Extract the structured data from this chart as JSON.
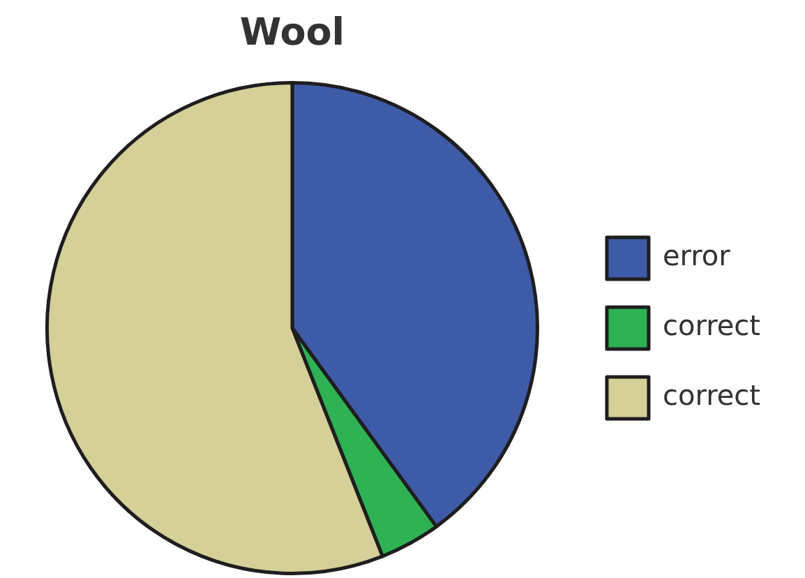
{
  "chart_data": {
    "type": "pie",
    "title": "Wool",
    "categories": [
      "error",
      "correct",
      "correct"
    ],
    "values": [
      40,
      4,
      56
    ],
    "colors": [
      "#3e5ba8",
      "#2eb254",
      "#d5cf98"
    ],
    "legend": "right"
  }
}
